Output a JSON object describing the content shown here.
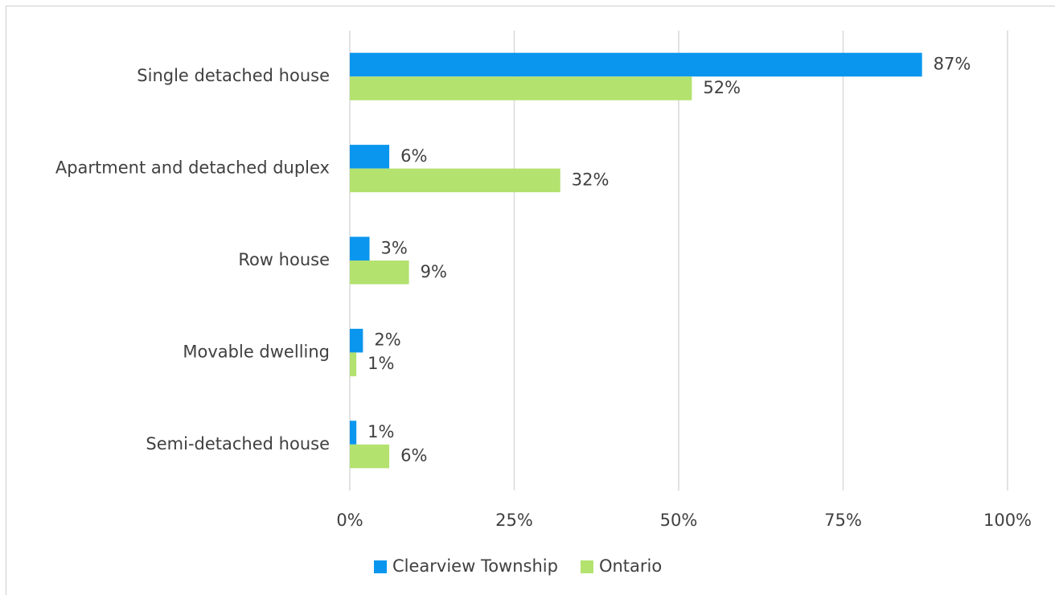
{
  "chart_data": {
    "type": "hbar",
    "categories": [
      "Single detached house",
      "Apartment and detached duplex",
      "Row house",
      "Movable dwelling",
      "Semi-detached house"
    ],
    "series": [
      {
        "name": "Clearview Township",
        "color": "#0a96ee",
        "values": [
          87,
          6,
          3,
          2,
          1
        ],
        "value_labels": [
          "87%",
          "6%",
          "3%",
          "2%",
          "1%"
        ]
      },
      {
        "name": "Ontario",
        "color": "#b3e26f",
        "values": [
          52,
          32,
          9,
          1,
          6
        ],
        "value_labels": [
          "52%",
          "32%",
          "9%",
          "1%",
          "6%"
        ]
      }
    ],
    "xlim": [
      0,
      100
    ],
    "xticks": [
      {
        "value": 0,
        "label": "0%"
      },
      {
        "value": 25,
        "label": "25%"
      },
      {
        "value": 50,
        "label": "50%"
      },
      {
        "value": 75,
        "label": "75%"
      },
      {
        "value": 100,
        "label": "100%"
      }
    ],
    "grid": true,
    "legend": "bottom"
  }
}
